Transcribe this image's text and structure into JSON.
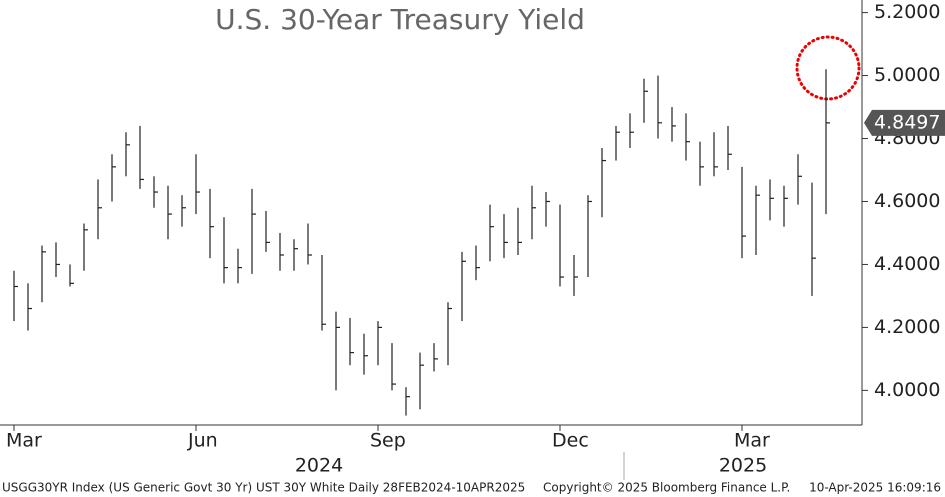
{
  "chart_data": {
    "type": "ohlc",
    "title": "U.S. 30-Year Treasury Yield",
    "categories": [
      "Mar",
      null,
      null,
      null,
      null,
      null,
      null,
      null,
      null,
      null,
      null,
      null,
      null,
      "Jun",
      null,
      null,
      null,
      null,
      null,
      null,
      null,
      null,
      null,
      null,
      null,
      null,
      "Sep",
      null,
      null,
      null,
      null,
      null,
      null,
      null,
      null,
      null,
      null,
      null,
      null,
      "Dec",
      null,
      null,
      null,
      null,
      null,
      null,
      null,
      null,
      null,
      null,
      null,
      null,
      "Mar",
      null,
      null,
      null,
      null,
      null,
      null
    ],
    "years": [
      "2024",
      "2025"
    ],
    "series": [
      {
        "color": "#222222",
        "close": [
          4.33,
          4.26,
          4.44,
          4.4,
          4.34,
          4.51,
          4.58,
          4.71,
          4.78,
          4.67,
          4.63,
          4.56,
          4.58,
          4.63,
          4.52,
          4.39,
          4.39,
          4.56,
          4.47,
          4.43,
          4.45,
          4.43,
          4.21,
          4.2,
          4.12,
          4.11,
          4.2,
          4.02,
          3.98,
          4.08,
          4.1,
          4.26,
          4.41,
          4.39,
          4.52,
          4.47,
          4.47,
          4.58,
          4.6,
          4.36,
          4.36,
          4.6,
          4.73,
          4.82,
          4.82,
          4.95,
          4.85,
          4.84,
          4.79,
          4.71,
          4.71,
          4.75,
          4.49,
          4.62,
          4.61,
          4.61,
          4.68,
          4.42,
          4.8497
        ],
        "high": [
          4.38,
          4.34,
          4.46,
          4.47,
          4.4,
          4.53,
          4.67,
          4.75,
          4.82,
          4.84,
          4.68,
          4.65,
          4.62,
          4.75,
          4.64,
          4.55,
          4.45,
          4.64,
          4.57,
          4.5,
          4.48,
          4.53,
          4.43,
          4.25,
          4.23,
          4.18,
          4.22,
          4.15,
          4.01,
          4.12,
          4.15,
          4.28,
          4.44,
          4.46,
          4.59,
          4.56,
          4.58,
          4.65,
          4.63,
          4.59,
          4.43,
          4.62,
          4.77,
          4.84,
          4.88,
          4.99,
          5.0,
          4.9,
          4.88,
          4.79,
          4.82,
          4.84,
          4.71,
          4.65,
          4.67,
          4.65,
          4.75,
          4.66,
          5.02
        ],
        "low": [
          4.22,
          4.19,
          4.28,
          4.36,
          4.33,
          4.38,
          4.48,
          4.6,
          4.68,
          4.64,
          4.58,
          4.48,
          4.52,
          4.56,
          4.42,
          4.34,
          4.34,
          4.37,
          4.44,
          4.38,
          4.38,
          4.4,
          4.19,
          4.0,
          4.08,
          4.05,
          4.08,
          4.0,
          3.92,
          3.94,
          4.06,
          4.08,
          4.22,
          4.35,
          4.41,
          4.42,
          4.43,
          4.48,
          4.52,
          4.33,
          4.3,
          4.36,
          4.55,
          4.73,
          4.77,
          4.85,
          4.8,
          4.79,
          4.73,
          4.65,
          4.68,
          4.7,
          4.42,
          4.43,
          4.54,
          4.52,
          4.59,
          4.3,
          4.56
        ]
      }
    ],
    "ylim": [
      3.89,
      5.24
    ],
    "yticks": [
      {
        "value": 4.0,
        "label": "4.0000"
      },
      {
        "value": 4.2,
        "label": "4.2000"
      },
      {
        "value": 4.4,
        "label": "4.4000"
      },
      {
        "value": 4.6,
        "label": "4.6000"
      },
      {
        "value": 4.8,
        "label": "4.8000"
      },
      {
        "value": 5.0,
        "label": "5.0000"
      },
      {
        "value": 5.2,
        "label": "5.2000"
      }
    ],
    "footer": {
      "left": "USGG30YR Index (US Generic Govt 30 Yr) UST 30Y White  Daily 28FEB2024-10APR2025",
      "center": "Copyright© 2025 Bloomberg Finance L.P.",
      "right": "10-Apr-2025 16:09:16"
    }
  }
}
